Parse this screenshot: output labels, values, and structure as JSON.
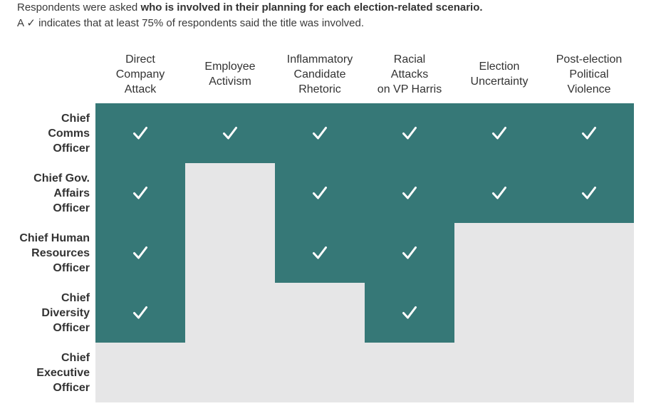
{
  "intro": {
    "line1_prefix": "Respondents were asked ",
    "line1_bold": "who is involved in their planning for each election-related scenario.",
    "line2": "A ✓ indicates that at least 75% of respondents said the title was involved."
  },
  "colors": {
    "involved": "#367877",
    "not_involved": "#e6e6e7",
    "check": "#ffffff"
  },
  "chart_data": {
    "type": "table",
    "columns": [
      "Direct\nCompany\nAttack",
      "Employee\nActivism",
      "Inflammatory\nCandidate\nRhetoric",
      "Racial\nAttacks\non VP Harris",
      "Election\nUncertainty",
      "Post-election\nPolitical\nViolence"
    ],
    "rows": [
      {
        "label": "Chief\nComms\nOfficer",
        "values": [
          true,
          true,
          true,
          true,
          true,
          true
        ]
      },
      {
        "label": "Chief Gov.\nAffairs\nOfficer",
        "values": [
          true,
          false,
          true,
          true,
          true,
          true
        ]
      },
      {
        "label": "Chief Human\nResources\nOfficer",
        "values": [
          true,
          false,
          true,
          true,
          false,
          false
        ]
      },
      {
        "label": "Chief\nDiversity\nOfficer",
        "values": [
          true,
          false,
          false,
          true,
          false,
          false
        ]
      },
      {
        "label": "Chief\nExecutive\nOfficer",
        "values": [
          false,
          false,
          false,
          false,
          false,
          false
        ]
      }
    ]
  }
}
